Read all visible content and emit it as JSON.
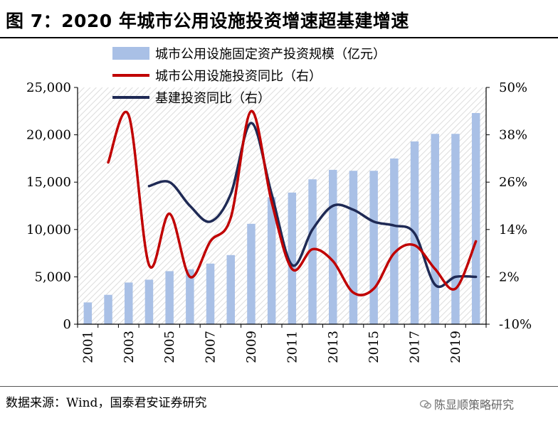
{
  "title": "图 7：2020 年城市公用设施投资增速超基建增速",
  "source": "数据来源：Wind，国泰君安证券研究",
  "watermark": "陈显顺策略研究",
  "chart_data": {
    "type": "bar+line",
    "categories": [
      "2001",
      "2002",
      "2003",
      "2004",
      "2005",
      "2006",
      "2007",
      "2008",
      "2009",
      "2010",
      "2011",
      "2012",
      "2013",
      "2014",
      "2015",
      "2016",
      "2017",
      "2018",
      "2019",
      "2020"
    ],
    "x_tick_labels": [
      "2001",
      "2003",
      "2005",
      "2007",
      "2009",
      "2011",
      "2013",
      "2015",
      "2017",
      "2019"
    ],
    "series": [
      {
        "name": "城市公用设施固定资产投资规模（亿元）",
        "type": "bar",
        "axis": "left",
        "color": "#a9c0e6",
        "values": [
          2300,
          3100,
          4400,
          4700,
          5600,
          5800,
          6400,
          7300,
          10600,
          13400,
          13900,
          15300,
          16300,
          16200,
          16200,
          17500,
          19300,
          20100,
          20100,
          22300
        ]
      },
      {
        "name": "城市公用设施投资同比（右）",
        "type": "line",
        "axis": "right",
        "color": "#c00000",
        "values": [
          null,
          31,
          43,
          5,
          18,
          2,
          11,
          17,
          44,
          21,
          4,
          9,
          6,
          -2,
          -1,
          8,
          10,
          4,
          -1,
          11
        ]
      },
      {
        "name": "基建投资同比（右）",
        "type": "line",
        "axis": "right",
        "color": "#1f2a55",
        "values": [
          null,
          null,
          null,
          25,
          26,
          20,
          16,
          23,
          41,
          23,
          5,
          14,
          20,
          19,
          16,
          15,
          13,
          0,
          2,
          2
        ]
      }
    ],
    "y_left": {
      "min": 0,
      "max": 25000,
      "ticks": [
        "0",
        "5,000",
        "10,000",
        "15,000",
        "20,000",
        "25,000"
      ]
    },
    "y_right": {
      "min": -10,
      "max": 50,
      "ticks": [
        "-10%",
        "2%",
        "14%",
        "26%",
        "38%",
        "50%"
      ]
    },
    "legend_position": "top-left",
    "grid": false
  }
}
